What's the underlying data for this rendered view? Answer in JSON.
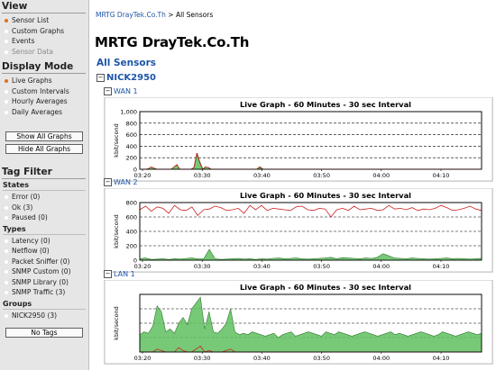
{
  "sidebar": {
    "view": {
      "heading": "View",
      "items": [
        {
          "label": "Sensor List",
          "state": "active"
        },
        {
          "label": "Custom Graphs",
          "state": "normal"
        },
        {
          "label": "Events",
          "state": "normal"
        },
        {
          "label": "Sensor Data",
          "state": "disabled"
        }
      ]
    },
    "display_mode": {
      "heading": "Display Mode",
      "items": [
        {
          "label": "Live Graphs",
          "state": "active"
        },
        {
          "label": "Custom Intervals",
          "state": "normal"
        },
        {
          "label": "Hourly Averages",
          "state": "normal"
        },
        {
          "label": "Daily Averages",
          "state": "normal"
        }
      ],
      "show_all_button": "Show All Graphs",
      "hide_all_button": "Hide All Graphs"
    },
    "tag_filter": {
      "heading": "Tag Filter",
      "states_heading": "States",
      "states": [
        "Error (0)",
        "Ok (3)",
        "Paused (0)"
      ],
      "types_heading": "Types",
      "types": [
        "Latency (0)",
        "Netflow (0)",
        "Packet Sniffer (0)",
        "SNMP Custom (0)",
        "SNMP Library (0)",
        "SNMP Traffic (3)"
      ],
      "groups_heading": "Groups",
      "groups": [
        "NICK2950 (3)"
      ],
      "no_tags_button": "No Tags"
    }
  },
  "breadcrumb": {
    "link": "MRTG DrayTek.Co.Th",
    "separator": ">",
    "current": "All Sensors"
  },
  "page_title": "MRTG DrayTek.Co.Th",
  "all_sensors_label": "All Sensors",
  "group": {
    "name": "NICK2950",
    "toggle": "⊟"
  },
  "colors": {
    "link": "#1f55a8",
    "active_dot": "#e2701a",
    "series_in": "#5fbf5f",
    "series_out": "#cc2222"
  },
  "sensors": [
    {
      "name": "WAN 1",
      "toggle": "⊟",
      "chart_data": {
        "type": "area",
        "title": "Live Graph - 60 Minutes - 30 sec Interval",
        "ylabel": "kbit/second",
        "ylim": [
          0,
          1000
        ],
        "yticks": [
          0,
          200,
          400,
          600,
          800,
          1000
        ],
        "ytick_labels": [
          "0",
          "200",
          "400",
          "600",
          "800",
          "1,000"
        ],
        "xticks": [
          "03:20",
          "03:30",
          "03:40",
          "03:50",
          "04:00",
          "04:10"
        ],
        "series": [
          {
            "kind": "area",
            "values": [
              0,
              0,
              0,
              10,
              40,
              20,
              0,
              0,
              0,
              0,
              0,
              0,
              40,
              80,
              0,
              0,
              0,
              0,
              0,
              30,
              280,
              120,
              0,
              40,
              30,
              0,
              0,
              0,
              0,
              0,
              0,
              0,
              0,
              0,
              0,
              0,
              0,
              0,
              0,
              0,
              0,
              0,
              40,
              0,
              0,
              0,
              0,
              0,
              0,
              0,
              0,
              0,
              0,
              0,
              0,
              0,
              0,
              0,
              0,
              0,
              0,
              0,
              0,
              0,
              0,
              0,
              0,
              0,
              0,
              0,
              0,
              0,
              0,
              0,
              0,
              0,
              0,
              0,
              0,
              0,
              0,
              0,
              0,
              0,
              0,
              0,
              0,
              0,
              0,
              0,
              0,
              0,
              0,
              0,
              0,
              0,
              0,
              0,
              0,
              0,
              0,
              0,
              0,
              0,
              0,
              0,
              0,
              0,
              0,
              0,
              0,
              0,
              0,
              0,
              0,
              0,
              0,
              0,
              0,
              0
            ]
          },
          {
            "kind": "line",
            "values": [
              0,
              0,
              0,
              10,
              40,
              20,
              0,
              0,
              0,
              0,
              0,
              0,
              40,
              80,
              0,
              0,
              0,
              0,
              0,
              30,
              280,
              120,
              0,
              40,
              30,
              0,
              0,
              0,
              0,
              0,
              0,
              0,
              0,
              0,
              0,
              0,
              0,
              0,
              0,
              0,
              0,
              0,
              40,
              0,
              0,
              0,
              0,
              0,
              0,
              0,
              0,
              0,
              0,
              0,
              0,
              0,
              0,
              0,
              0,
              0,
              0,
              0,
              0,
              0,
              0,
              0,
              0,
              0,
              0,
              0,
              0,
              0,
              0,
              0,
              0,
              0,
              0,
              0,
              0,
              0,
              0,
              0,
              0,
              0,
              0,
              0,
              0,
              0,
              0,
              0,
              0,
              0,
              0,
              0,
              0,
              0,
              0,
              0,
              0,
              0,
              0,
              0,
              0,
              0,
              0,
              0,
              0,
              0,
              0,
              0,
              0,
              0,
              0,
              0,
              0,
              0,
              0,
              0,
              0,
              0,
              0
            ]
          }
        ]
      }
    },
    {
      "name": "WAN 2",
      "toggle": "⊟",
      "chart_data": {
        "type": "area",
        "title": "Live Graph - 60 Minutes - 30 sec Interval",
        "ylabel": "kbit/second",
        "ylim": [
          0,
          800
        ],
        "yticks": [
          0,
          200,
          400,
          600,
          800
        ],
        "ytick_labels": [
          "0",
          "200",
          "400",
          "600",
          "800"
        ],
        "xticks": [
          "03:20",
          "03:30",
          "03:40",
          "03:50",
          "04:00",
          "04:10"
        ],
        "series": [
          {
            "kind": "area",
            "values": [
              20,
              30,
              10,
              15,
              20,
              10,
              20,
              15,
              25,
              30,
              20,
              15,
              150,
              20,
              10,
              15,
              20,
              25,
              15,
              20,
              10,
              20,
              15,
              25,
              30,
              20,
              25,
              30,
              20,
              15,
              20,
              25,
              30,
              40,
              20,
              35,
              30,
              25,
              20,
              30,
              25,
              40,
              90,
              60,
              30,
              25,
              20,
              30,
              25,
              20,
              15,
              20,
              25,
              30,
              20,
              25,
              20,
              15,
              20,
              25
            ]
          },
          {
            "kind": "line",
            "values": [
              700,
              750,
              680,
              740,
              720,
              650,
              760,
              700,
              690,
              740,
              620,
              700,
              710,
              750,
              730,
              690,
              700,
              720,
              650,
              760,
              700,
              760,
              690,
              720,
              710,
              700,
              690,
              740,
              750,
              700,
              690,
              720,
              710,
              600,
              700,
              720,
              690,
              750,
              700,
              710,
              720,
              690,
              700,
              760,
              710,
              720,
              700,
              730,
              690,
              710,
              700,
              720,
              760,
              730,
              690,
              700,
              720,
              750,
              710,
              690
            ]
          }
        ]
      }
    },
    {
      "name": "LAN 1",
      "toggle": "⊟",
      "chart_data": {
        "type": "area",
        "title": "Live Graph - 60 Minutes - 30 sec Interval",
        "ylabel": "kbit/second",
        "ylim": [
          0,
          2000
        ],
        "yticks": [
          0,
          500,
          1000,
          1500,
          2000
        ],
        "ytick_labels": [
          "",
          "",
          "",
          "",
          ""
        ],
        "xticks": [
          "03:20",
          "03:30",
          "03:40",
          "03:50",
          "04:00",
          "04:10"
        ],
        "series": [
          {
            "kind": "area",
            "values": [
              600,
              700,
              650,
              900,
              1600,
              1400,
              700,
              800,
              650,
              1000,
              1200,
              950,
              1500,
              1700,
              1900,
              800,
              1400,
              700,
              650,
              800,
              1000,
              1500,
              700,
              600,
              650,
              600,
              700,
              650,
              600,
              550,
              600,
              650,
              500,
              600,
              650,
              700,
              550,
              600,
              650,
              700,
              650,
              600,
              550,
              700,
              650,
              600,
              700,
              650,
              600,
              550,
              600,
              650,
              700,
              650,
              600,
              550,
              600,
              650,
              700,
              600,
              650,
              600,
              550,
              600,
              650,
              700,
              650,
              600,
              550,
              600,
              700,
              650,
              600,
              550,
              600,
              650,
              700,
              650,
              600,
              650
            ]
          },
          {
            "kind": "line",
            "values": [
              0,
              0,
              0,
              0,
              100,
              50,
              0,
              0,
              0,
              150,
              50,
              0,
              0,
              100,
              200,
              0,
              50,
              0,
              0,
              0,
              50,
              100,
              0,
              0,
              0,
              0,
              0,
              0,
              0,
              0,
              0,
              0,
              0,
              0,
              0,
              0,
              0,
              0,
              0,
              0,
              0,
              0,
              0,
              0,
              0,
              0,
              0,
              0,
              0,
              0,
              0,
              0,
              0,
              0,
              0,
              0,
              0,
              0,
              0,
              0,
              0,
              0,
              0,
              0,
              0,
              0,
              0,
              0,
              0,
              0,
              0,
              0,
              0,
              0,
              0,
              0,
              0,
              0,
              0,
              0
            ]
          }
        ]
      }
    }
  ]
}
